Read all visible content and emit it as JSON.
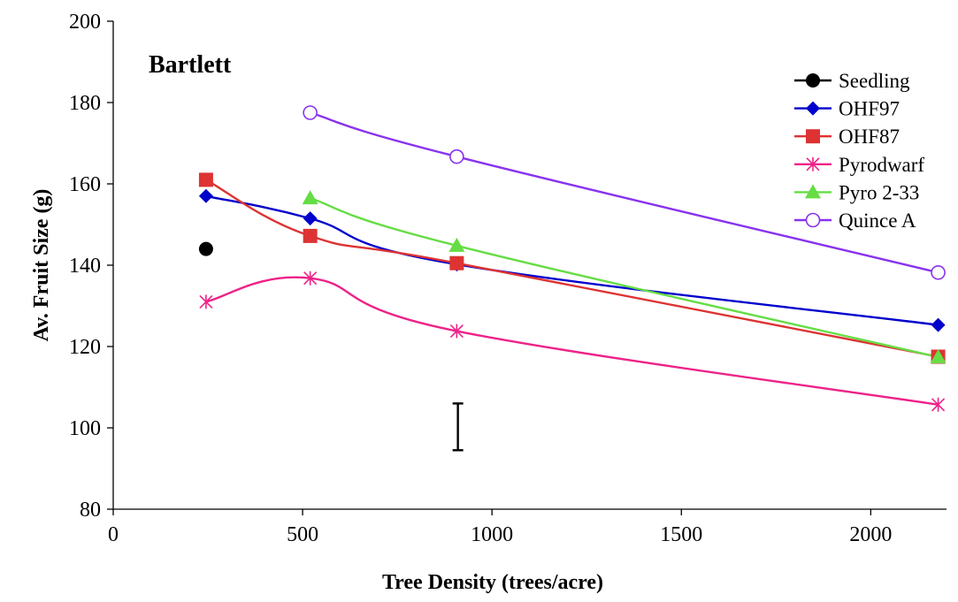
{
  "chart_data": {
    "type": "line",
    "title": "Bartlett",
    "xlabel": "Tree Density (trees/acre)",
    "ylabel": "Av. Fruit Size (g)",
    "xlim": [
      0,
      2200
    ],
    "ylim": [
      80,
      200
    ],
    "xticks": [
      0,
      500,
      1000,
      1500,
      2000
    ],
    "yticks": [
      80,
      100,
      120,
      140,
      160,
      180,
      200
    ],
    "grid": false,
    "legend_position": "top-right",
    "series": [
      {
        "name": "Seedling",
        "color": "#000000",
        "marker": "filled-circle",
        "x": [
          245
        ],
        "y": [
          144
        ]
      },
      {
        "name": "OHF97",
        "color": "#0000cc",
        "marker": "filled-diamond",
        "x": [
          245,
          520,
          907,
          2178
        ],
        "y": [
          157,
          151.5,
          140.2,
          125.3
        ]
      },
      {
        "name": "OHF87",
        "color": "#dd3333",
        "marker": "filled-square",
        "x": [
          245,
          520,
          907,
          2178
        ],
        "y": [
          161,
          147.2,
          140.5,
          117.5
        ]
      },
      {
        "name": "Pyrodwarf",
        "color": "#ee2288",
        "marker": "asterisk",
        "x": [
          245,
          520,
          907,
          2178
        ],
        "y": [
          131,
          136.8,
          123.8,
          105.7
        ]
      },
      {
        "name": "Pyro 2-33",
        "color": "#66dd44",
        "marker": "filled-triangle",
        "x": [
          520,
          907,
          2178
        ],
        "y": [
          156.5,
          144.8,
          117.4
        ]
      },
      {
        "name": "Quince A",
        "color": "#8833ee",
        "marker": "open-circle",
        "x": [
          520,
          907,
          2178
        ],
        "y": [
          177.5,
          166.7,
          138.2
        ]
      }
    ],
    "error_bar": {
      "x": 910,
      "y_low": 94.5,
      "y_high": 106
    }
  }
}
